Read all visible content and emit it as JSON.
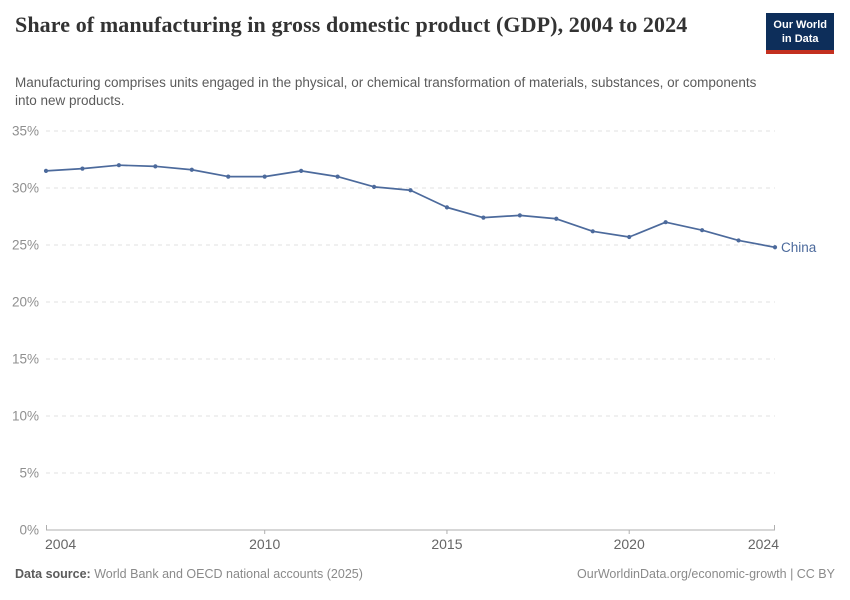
{
  "header": {
    "title": "Share of manufacturing in gross domestic product (GDP), 2004 to 2024",
    "subtitle": "Manufacturing comprises units engaged in the physical, or chemical transformation of materials, substances, or components into new products.",
    "logo": {
      "line1": "Our World",
      "line2": "in Data"
    }
  },
  "footer": {
    "source_label": "Data source:",
    "source_text": "World Bank and OECD national accounts (2025)",
    "credit": "OurWorldinData.org/economic-growth | CC BY"
  },
  "colors": {
    "line": "#4C6A9C",
    "logo_bg": "#0D2E5A",
    "logo_stripe": "#C3301F",
    "grid": "#E2E2E2",
    "axis": "#AFAFAF",
    "y_tick_text": "#8F8F8F",
    "x_tick_text": "#666666"
  },
  "chart_data": {
    "type": "line",
    "title": "Share of manufacturing in gross domestic product (GDP), 2004 to 2024",
    "xlabel": "",
    "ylabel": "",
    "xlim": [
      2004,
      2024
    ],
    "ylim": [
      0,
      35
    ],
    "x_ticks": [
      2004,
      2010,
      2015,
      2020,
      2024
    ],
    "y_ticks": [
      0,
      5,
      10,
      15,
      20,
      25,
      30,
      35
    ],
    "y_tick_suffix": "%",
    "grid": "horizontal-dashed",
    "legend_position": "end-of-line-label",
    "series": [
      {
        "name": "China",
        "x": [
          2004,
          2005,
          2006,
          2007,
          2008,
          2009,
          2010,
          2011,
          2012,
          2013,
          2014,
          2015,
          2016,
          2017,
          2018,
          2019,
          2020,
          2021,
          2022,
          2023,
          2024
        ],
        "values": [
          31.5,
          31.7,
          32.0,
          31.9,
          31.6,
          31.0,
          31.0,
          31.5,
          31.0,
          30.1,
          29.8,
          28.3,
          27.4,
          27.6,
          27.3,
          26.2,
          25.7,
          27.0,
          26.3,
          25.4,
          24.8
        ]
      }
    ]
  }
}
